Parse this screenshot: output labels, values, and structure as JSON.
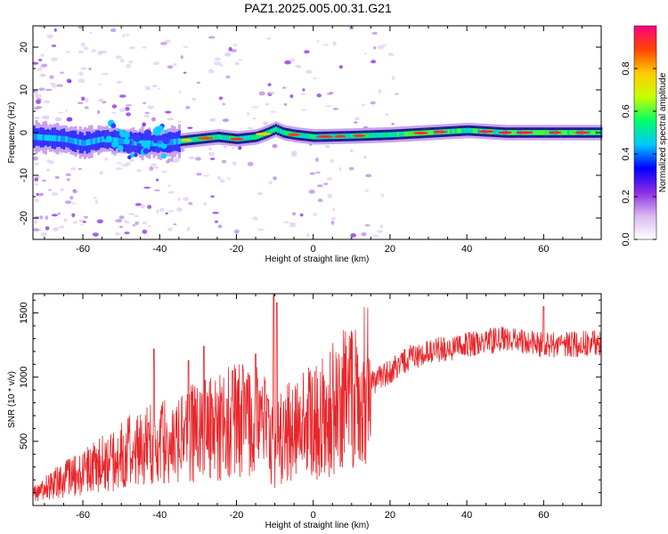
{
  "figure": {
    "title": "PAZ1.2025.005.00.31.G21"
  },
  "chart_data": [
    {
      "type": "heatmap",
      "xlabel": "Height of straight line (km)",
      "ylabel": "Frequency (Hz)",
      "xlim": [
        -73,
        75
      ],
      "ylim": [
        -25,
        25
      ],
      "x_ticks": [
        -60,
        -40,
        -20,
        0,
        20,
        40,
        60
      ],
      "y_ticks": [
        -20,
        -10,
        0,
        10,
        20
      ],
      "x_tick_labels": [
        "-60",
        "-40",
        "-20",
        "0",
        "20",
        "40",
        "60"
      ],
      "y_tick_labels": [
        "-20",
        "-10",
        "0",
        "10",
        "20"
      ],
      "grid": false,
      "colorbar": {
        "label": "Normalized spectral amplitude",
        "range": [
          0,
          1
        ],
        "ticks": [
          0.0,
          0.2,
          0.4,
          0.6,
          0.8
        ],
        "tick_labels": [
          "0.0",
          "0.2",
          "0.4",
          "0.6",
          "0.8"
        ],
        "colors": [
          "#ffffff",
          "#d9b8f0",
          "#8a2be2",
          "#0000ff",
          "#00c8ff",
          "#00ff66",
          "#c8ff00",
          "#ffcc00",
          "#ff4500",
          "#ff0080"
        ]
      },
      "ridge": {
        "x": [
          -73,
          -65,
          -60,
          -55,
          -50,
          -45,
          -40,
          -35,
          -30,
          -25,
          -20,
          -15,
          -12,
          -10,
          -8,
          -5,
          0,
          10,
          20,
          30,
          40,
          50,
          60,
          70,
          75
        ],
        "frequency": [
          -1,
          -1.5,
          -2.5,
          -1.5,
          -2,
          -2.5,
          -2.5,
          -2,
          -1.5,
          -1,
          -1.5,
          -1,
          0,
          0.8,
          0,
          -0.5,
          -1,
          -0.8,
          -0.5,
          0,
          0.5,
          0,
          0,
          0,
          0
        ]
      }
    },
    {
      "type": "line",
      "xlabel": "Height of straight line (km)",
      "ylabel": "SNR (10 * v/v)",
      "xlim": [
        -73,
        75
      ],
      "ylim": [
        0,
        1650
      ],
      "x_ticks": [
        -60,
        -40,
        -20,
        0,
        20,
        40,
        60
      ],
      "y_ticks": [
        500,
        1000,
        1500
      ],
      "x_tick_labels": [
        "-60",
        "-40",
        "-20",
        "0",
        "20",
        "40",
        "60"
      ],
      "y_tick_labels": [
        "500",
        "1000",
        "1500"
      ],
      "grid": false,
      "color": "#e8262a",
      "trend": {
        "x": [
          -73,
          -65,
          -60,
          -50,
          -45,
          -40,
          -35,
          -30,
          -25,
          -20,
          -15,
          -12,
          -10,
          -9,
          -5,
          0,
          10,
          20,
          25,
          30,
          40,
          50,
          60,
          70,
          75
        ],
        "y": [
          100,
          200,
          250,
          400,
          450,
          500,
          500,
          580,
          600,
          680,
          720,
          650,
          350,
          500,
          600,
          650,
          850,
          1050,
          1150,
          1200,
          1250,
          1300,
          1250,
          1260,
          1270
        ]
      },
      "spikes": [
        {
          "x": -41.5,
          "y": 1220
        },
        {
          "x": -32.5,
          "y": 1130
        },
        {
          "x": -28.5,
          "y": 1240
        },
        {
          "x": -21.0,
          "y": 1050
        },
        {
          "x": -15.0,
          "y": 1180
        },
        {
          "x": -10.3,
          "y": 1650
        },
        {
          "x": -9.5,
          "y": 1580
        },
        {
          "x": 60.0,
          "y": 1550
        }
      ]
    }
  ]
}
